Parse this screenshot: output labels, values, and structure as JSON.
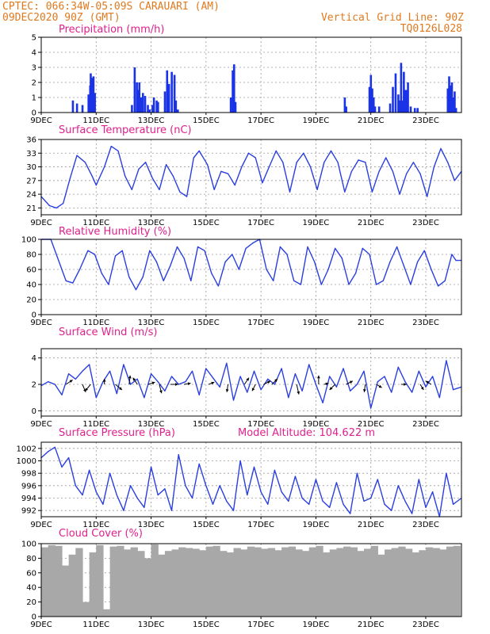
{
  "header": {
    "line1": "CPTEC:   066:34W-05:09S  CARAUARI (AM)",
    "line2": "09DEC2020 90Z (GMT)",
    "vgrid": "Vertical Grid Line: 90Z",
    "code": "TQ0126L028"
  },
  "x_axis": {
    "labels": [
      "9DEC",
      "11DEC",
      "13DEC",
      "15DEC",
      "17DEC",
      "19DEC",
      "21DEC",
      "23DEC"
    ],
    "label_days": [
      0,
      2,
      4,
      6,
      8,
      10,
      12,
      14
    ],
    "days_span": 15.3
  },
  "colors": {
    "series": "#2a3fe0",
    "bars": "#1a33e6",
    "cloud": "#a8a8a8",
    "header": "#e07a1f",
    "title": "#e0208c"
  },
  "chart_data": [
    {
      "type": "bar",
      "title": "Precipitation (mm/h)",
      "ylim": [
        0,
        5
      ],
      "yticks": [
        0,
        1,
        2,
        3,
        4,
        5
      ],
      "x": [
        1.15,
        1.3,
        1.5,
        1.72,
        1.78,
        1.8,
        1.85,
        1.9,
        1.95,
        3.3,
        3.4,
        3.48,
        3.52,
        3.57,
        3.63,
        3.7,
        3.78,
        3.88,
        3.95,
        4.05,
        4.1,
        4.2,
        4.25,
        4.5,
        4.58,
        4.65,
        4.75,
        4.85,
        4.9,
        4.97,
        6.9,
        6.97,
        7.02,
        7.07,
        11.05,
        11.1,
        11.95,
        12.0,
        12.05,
        12.1,
        12.15,
        12.3,
        12.7,
        12.8,
        12.9,
        13.0,
        13.05,
        13.1,
        13.15,
        13.2,
        13.25,
        13.3,
        13.35,
        13.45,
        13.6,
        13.7,
        14.8,
        14.85,
        14.9,
        14.95,
        15.0,
        15.05,
        15.1
      ],
      "values": [
        0.8,
        0.6,
        0.5,
        1.2,
        1.8,
        2.6,
        2.3,
        2.4,
        1.3,
        0.5,
        3.0,
        2.0,
        1.5,
        2.0,
        1.0,
        1.3,
        1.1,
        0.5,
        0.2,
        0.5,
        1.0,
        0.8,
        0.7,
        1.4,
        2.8,
        1.9,
        2.7,
        2.5,
        0.8,
        0.2,
        1.0,
        2.8,
        3.2,
        0.7,
        1.0,
        0.4,
        1.7,
        2.5,
        1.6,
        1.0,
        0.4,
        0.4,
        0.6,
        1.7,
        2.6,
        1.2,
        0.8,
        3.3,
        0.8,
        2.7,
        1.5,
        1.5,
        2.0,
        0.4,
        0.3,
        0.3,
        1.6,
        2.4,
        1.8,
        2.0,
        1.0,
        1.4,
        0.3
      ]
    },
    {
      "type": "line",
      "title": "Surface Temperature (nC)",
      "ylim": [
        19.5,
        36
      ],
      "yticks": [
        21,
        24,
        27,
        30,
        33,
        36
      ],
      "x": [
        0,
        0.3,
        0.55,
        0.8,
        1.05,
        1.3,
        1.6,
        1.85,
        2.0,
        2.3,
        2.55,
        2.8,
        3.05,
        3.3,
        3.55,
        3.8,
        4.05,
        4.3,
        4.55,
        4.8,
        5.05,
        5.3,
        5.55,
        5.75,
        6.05,
        6.3,
        6.55,
        6.8,
        7.05,
        7.3,
        7.55,
        7.8,
        8.05,
        8.3,
        8.55,
        8.8,
        9.05,
        9.3,
        9.55,
        9.8,
        10.05,
        10.3,
        10.55,
        10.8,
        11.05,
        11.3,
        11.55,
        11.8,
        12.05,
        12.3,
        12.55,
        12.8,
        13.05,
        13.3,
        13.55,
        13.8,
        14.05,
        14.3,
        14.55,
        14.8,
        15.05,
        15.3
      ],
      "values": [
        23.5,
        21.5,
        21,
        22,
        27.5,
        32.5,
        31,
        28,
        26,
        30,
        34.5,
        33.5,
        28,
        25,
        29.5,
        31,
        27.5,
        25,
        30.5,
        28,
        24.5,
        23.5,
        32,
        33.5,
        30.5,
        25,
        29,
        28.5,
        26,
        30,
        33,
        32,
        26.5,
        30,
        33.5,
        31,
        24.5,
        31,
        33,
        30,
        25,
        31,
        33.5,
        31,
        24.5,
        29,
        31.5,
        31,
        24.5,
        29,
        32,
        29,
        24,
        28.5,
        31,
        28.5,
        23.5,
        30,
        34,
        31,
        27,
        29
      ]
    },
    {
      "type": "line",
      "title": "Relative Humidity (%)",
      "ylim": [
        0,
        100
      ],
      "yticks": [
        0,
        20,
        40,
        60,
        80,
        100
      ],
      "x": [
        0,
        0.35,
        0.6,
        0.9,
        1.15,
        1.4,
        1.7,
        1.95,
        2.2,
        2.45,
        2.7,
        2.95,
        3.2,
        3.45,
        3.7,
        3.95,
        4.2,
        4.45,
        4.7,
        4.95,
        5.2,
        5.45,
        5.7,
        5.95,
        6.2,
        6.45,
        6.7,
        6.95,
        7.2,
        7.45,
        7.7,
        7.95,
        8.2,
        8.45,
        8.7,
        8.95,
        9.2,
        9.45,
        9.7,
        9.95,
        10.2,
        10.45,
        10.7,
        10.95,
        11.2,
        11.45,
        11.7,
        11.95,
        12.2,
        12.45,
        12.7,
        12.95,
        13.2,
        13.45,
        13.7,
        13.95,
        14.2,
        14.45,
        14.7,
        14.95,
        15.1,
        15.3
      ],
      "values": [
        100,
        100,
        75,
        45,
        42,
        60,
        85,
        80,
        55,
        40,
        78,
        85,
        50,
        33,
        50,
        85,
        70,
        45,
        65,
        90,
        75,
        45,
        90,
        85,
        55,
        38,
        70,
        80,
        60,
        88,
        95,
        100,
        60,
        45,
        90,
        80,
        45,
        40,
        90,
        70,
        40,
        60,
        88,
        75,
        40,
        55,
        88,
        80,
        40,
        45,
        70,
        90,
        65,
        40,
        70,
        85,
        60,
        38,
        45,
        80,
        72,
        72
      ]
    },
    {
      "type": "line",
      "title": "Surface Wind (m/s)",
      "ylim": [
        -0.4,
        4.7
      ],
      "yticks": [
        0,
        2,
        4
      ],
      "x": [
        0,
        0.25,
        0.5,
        0.75,
        1.0,
        1.25,
        1.5,
        1.75,
        2.0,
        2.25,
        2.5,
        2.75,
        3.0,
        3.25,
        3.5,
        3.75,
        4.0,
        4.25,
        4.5,
        4.75,
        5.0,
        5.25,
        5.5,
        5.75,
        6.0,
        6.25,
        6.5,
        6.75,
        7.0,
        7.25,
        7.5,
        7.75,
        8.0,
        8.25,
        8.5,
        8.75,
        9.0,
        9.25,
        9.5,
        9.75,
        10.0,
        10.25,
        10.5,
        10.75,
        11.0,
        11.25,
        11.5,
        11.75,
        12.0,
        12.25,
        12.5,
        12.75,
        13.0,
        13.25,
        13.5,
        13.75,
        14.0,
        14.25,
        14.5,
        14.75,
        15.0,
        15.3
      ],
      "values": [
        1.9,
        2.2,
        2.0,
        1.2,
        2.8,
        2.4,
        3.0,
        3.5,
        1.0,
        2.2,
        3.0,
        1.3,
        3.5,
        2.0,
        2.4,
        1.0,
        2.8,
        2.2,
        1.5,
        2.6,
        2.0,
        2.2,
        3.0,
        1.2,
        3.2,
        2.5,
        1.8,
        3.6,
        0.8,
        2.6,
        1.4,
        3.0,
        1.6,
        2.4,
        2.0,
        3.2,
        1.0,
        2.8,
        1.5,
        3.5,
        2.0,
        0.6,
        2.6,
        1.8,
        3.2,
        1.5,
        2.0,
        3.0,
        0.2,
        2.2,
        2.6,
        1.4,
        3.3,
        2.2,
        1.4,
        3.0,
        1.8,
        2.6,
        1.0,
        3.8,
        1.6,
        1.8
      ],
      "vectors": [
        {
          "x": 0.9,
          "u": 0.6,
          "v": 0.4
        },
        {
          "x": 1.5,
          "u": 0.3,
          "v": -0.7
        },
        {
          "x": 1.8,
          "u": -0.5,
          "v": -0.6
        },
        {
          "x": 2.3,
          "u": 0.0,
          "v": 0.5
        },
        {
          "x": 2.7,
          "u": 0.6,
          "v": -0.5
        },
        {
          "x": 3.2,
          "u": 0.1,
          "v": 0.8
        },
        {
          "x": 3.5,
          "u": -0.4,
          "v": 0.6
        },
        {
          "x": 3.9,
          "u": 0.6,
          "v": 0.2
        },
        {
          "x": 4.3,
          "u": 0.2,
          "v": -0.8
        },
        {
          "x": 4.7,
          "u": 0.7,
          "v": 0.0
        },
        {
          "x": 5.2,
          "u": 0.6,
          "v": 0.1
        },
        {
          "x": 6.1,
          "u": 0.5,
          "v": 0.2
        },
        {
          "x": 6.8,
          "u": -0.1,
          "v": -0.7
        },
        {
          "x": 7.4,
          "u": 0.4,
          "v": 0.6
        },
        {
          "x": 7.8,
          "u": -0.3,
          "v": -0.6
        },
        {
          "x": 8.1,
          "u": 0.6,
          "v": 0.3
        },
        {
          "x": 8.4,
          "u": 0.5,
          "v": 0.5
        },
        {
          "x": 9.3,
          "u": 0.2,
          "v": -0.9
        },
        {
          "x": 10.1,
          "u": 0.0,
          "v": 0.8
        },
        {
          "x": 10.3,
          "u": 0.4,
          "v": 0.1
        },
        {
          "x": 10.7,
          "u": -0.5,
          "v": -0.5
        },
        {
          "x": 11.1,
          "u": 0.6,
          "v": 0.3
        },
        {
          "x": 11.8,
          "u": -0.1,
          "v": -0.7
        },
        {
          "x": 12.2,
          "u": 0.5,
          "v": -0.3
        },
        {
          "x": 13.1,
          "u": 0.5,
          "v": 0.0
        },
        {
          "x": 13.8,
          "u": 0.3,
          "v": -0.5
        },
        {
          "x": 14.2,
          "u": -0.5,
          "v": 0.3
        }
      ]
    },
    {
      "type": "line",
      "title": "Surface Pressure (hPa)",
      "annotation": "Model Altitude: 104.622 m",
      "ylim": [
        991,
        1003
      ],
      "yticks": [
        992,
        994,
        996,
        998,
        1000,
        1002
      ],
      "x": [
        0,
        0.25,
        0.5,
        0.75,
        1.0,
        1.25,
        1.5,
        1.75,
        2.0,
        2.25,
        2.5,
        2.75,
        3.0,
        3.25,
        3.5,
        3.75,
        4.0,
        4.25,
        4.5,
        4.75,
        5.0,
        5.25,
        5.5,
        5.75,
        6.0,
        6.25,
        6.5,
        6.75,
        7.0,
        7.25,
        7.5,
        7.75,
        8.0,
        8.25,
        8.5,
        8.75,
        9.0,
        9.25,
        9.5,
        9.75,
        10.0,
        10.25,
        10.5,
        10.75,
        11.0,
        11.25,
        11.5,
        11.75,
        12.0,
        12.25,
        12.5,
        12.75,
        13.0,
        13.25,
        13.5,
        13.75,
        14.0,
        14.25,
        14.5,
        14.75,
        15.0,
        15.3
      ],
      "values": [
        1000.5,
        1001.5,
        1002.2,
        999,
        1000.5,
        996,
        994.5,
        998.5,
        995,
        993,
        998,
        994.5,
        992,
        996,
        994,
        992.5,
        999,
        994.5,
        995.5,
        992,
        1001,
        996,
        994,
        999.5,
        996,
        993,
        996,
        993.5,
        992,
        1000,
        994.5,
        999,
        995,
        993,
        998.5,
        995,
        993.5,
        997.5,
        994,
        993,
        997,
        993.5,
        992.5,
        996.5,
        993,
        991.5,
        998,
        993.5,
        994,
        997,
        993,
        992,
        996,
        993.5,
        991.5,
        997,
        992.5,
        995,
        991,
        998,
        993,
        994
      ]
    },
    {
      "type": "bar",
      "title": "Cloud Cover (%)",
      "ylim": [
        0,
        100
      ],
      "yticks": [
        0,
        20,
        40,
        60,
        80,
        100
      ],
      "x": [
        0,
        0.25,
        0.5,
        0.75,
        1.0,
        1.25,
        1.5,
        1.75,
        2.0,
        2.25,
        2.5,
        2.75,
        3.0,
        3.25,
        3.5,
        3.75,
        4.0,
        4.25,
        4.5,
        4.75,
        5.0,
        5.25,
        5.5,
        5.75,
        6.0,
        6.25,
        6.5,
        6.75,
        7.0,
        7.25,
        7.5,
        7.75,
        8.0,
        8.25,
        8.5,
        8.75,
        9.0,
        9.25,
        9.5,
        9.75,
        10.0,
        10.25,
        10.5,
        10.75,
        11.0,
        11.25,
        11.5,
        11.75,
        12.0,
        12.25,
        12.5,
        12.75,
        13.0,
        13.25,
        13.5,
        13.75,
        14.0,
        14.25,
        14.5,
        14.75,
        15.0
      ],
      "values": [
        95,
        98,
        97,
        70,
        85,
        94,
        20,
        88,
        98,
        10,
        96,
        97,
        92,
        95,
        90,
        80,
        99,
        85,
        90,
        92,
        95,
        94,
        93,
        91,
        96,
        97,
        90,
        88,
        94,
        92,
        96,
        95,
        93,
        94,
        91,
        95,
        96,
        92,
        90,
        95,
        97,
        88,
        92,
        94,
        96,
        95,
        90,
        93,
        97,
        85,
        92,
        94,
        96,
        93,
        88,
        91,
        95,
        94,
        92,
        96,
        97
      ]
    }
  ]
}
